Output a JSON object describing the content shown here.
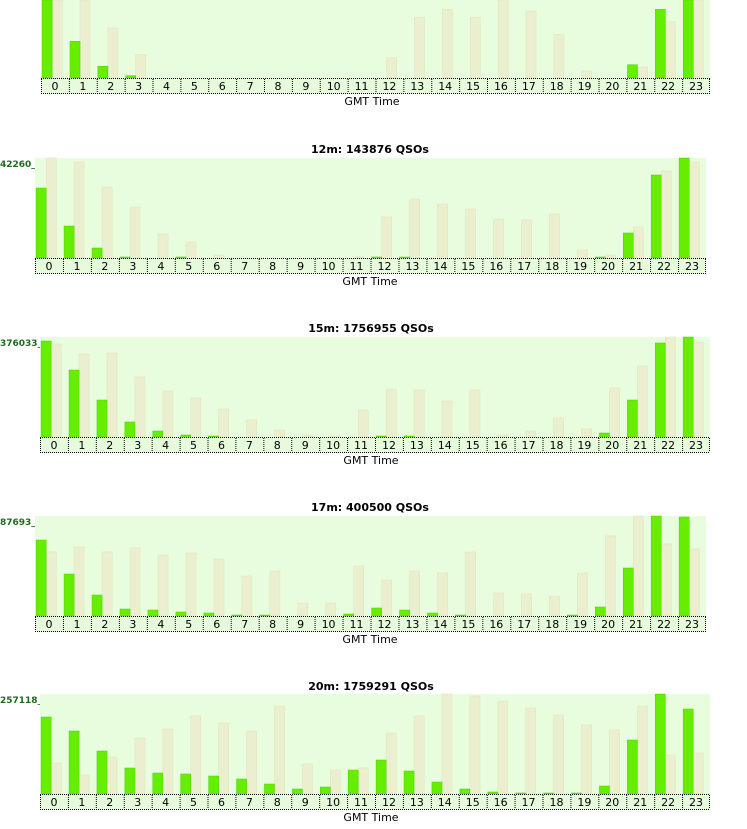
{
  "colors": {
    "plot_background": "#e8fcde",
    "bar_current": "#66ee00",
    "bar_current_edge": "#4fd000",
    "bar_previous": "#ecefcf",
    "bar_previous_edge": "#dfe4b8",
    "axis_band": "#e6fadc",
    "ymax_text": "#1e6b1e"
  },
  "chart_data": [
    {
      "type": "bar",
      "title": "",
      "ymax_label": "",
      "xlabel": "GMT Time",
      "categories": [
        "0",
        "1",
        "2",
        "3",
        "4",
        "5",
        "6",
        "7",
        "8",
        "9",
        "10",
        "11",
        "12",
        "13",
        "14",
        "15",
        "16",
        "17",
        "18",
        "19",
        "20",
        "21",
        "22",
        "23"
      ],
      "ylim": [
        0,
        100
      ],
      "series": [
        {
          "values": [
            100,
            47,
            15,
            3,
            0,
            0,
            0,
            0,
            0,
            0,
            0,
            0,
            0,
            0,
            0,
            0,
            0,
            0,
            0,
            0,
            0,
            17,
            88,
            100
          ]
        },
        {
          "values": [
            100,
            100,
            64,
            30,
            0,
            0,
            0,
            0,
            0,
            0,
            0,
            0,
            26,
            78,
            88,
            78,
            100,
            86,
            56,
            9,
            0,
            14,
            72,
            100
          ]
        }
      ]
    },
    {
      "type": "bar",
      "title": "12m: 143876 QSOs",
      "ymax_label": "42260_",
      "xlabel": "GMT Time",
      "categories": [
        "0",
        "1",
        "2",
        "3",
        "4",
        "5",
        "6",
        "7",
        "8",
        "9",
        "10",
        "11",
        "12",
        "13",
        "14",
        "15",
        "16",
        "17",
        "18",
        "19",
        "20",
        "21",
        "22",
        "23"
      ],
      "ylim": [
        0,
        100
      ],
      "series": [
        {
          "values": [
            70,
            32,
            10,
            1,
            0,
            1,
            0,
            0,
            0,
            0,
            0,
            0,
            1,
            1,
            0,
            0,
            0,
            0,
            0,
            0,
            1,
            25,
            83,
            100
          ]
        },
        {
          "values": [
            100,
            96,
            71,
            51,
            24,
            16,
            3,
            0,
            0,
            0,
            0,
            1,
            41,
            59,
            54,
            49,
            39,
            38,
            44,
            8,
            3,
            31,
            87,
            96
          ]
        }
      ]
    },
    {
      "type": "bar",
      "title": "15m: 1756955 QSOs",
      "ymax_label": "376033_",
      "xlabel": "GMT Time",
      "categories": [
        "0",
        "1",
        "2",
        "3",
        "4",
        "5",
        "6",
        "7",
        "8",
        "9",
        "10",
        "11",
        "12",
        "13",
        "14",
        "15",
        "16",
        "17",
        "18",
        "19",
        "20",
        "21",
        "22",
        "23"
      ],
      "ylim": [
        0,
        100
      ],
      "series": [
        {
          "values": [
            96,
            67,
            37,
            15,
            6,
            2,
            1,
            0,
            0,
            0,
            0,
            0,
            1,
            1,
            0,
            0,
            0,
            0,
            0,
            0,
            4,
            37,
            94,
            100
          ]
        },
        {
          "values": [
            93,
            83,
            84,
            60,
            46,
            39,
            28,
            17,
            7,
            2,
            1,
            27,
            48,
            47,
            36,
            47,
            2,
            6,
            19,
            8,
            49,
            71,
            100,
            95
          ]
        }
      ]
    },
    {
      "type": "bar",
      "title": "17m: 400500 QSOs",
      "ymax_label": "87693_",
      "xlabel": "GMT Time",
      "categories": [
        "0",
        "1",
        "2",
        "3",
        "4",
        "5",
        "6",
        "7",
        "8",
        "9",
        "10",
        "11",
        "12",
        "13",
        "14",
        "15",
        "16",
        "17",
        "18",
        "19",
        "20",
        "21",
        "22",
        "23"
      ],
      "ylim": [
        0,
        100
      ],
      "series": [
        {
          "values": [
            76,
            42,
            21,
            7,
            6,
            4,
            3,
            1,
            1,
            0,
            0,
            2,
            8,
            6,
            3,
            1,
            0,
            0,
            0,
            1,
            9,
            48,
            100,
            99
          ]
        },
        {
          "values": [
            64,
            69,
            64,
            68,
            61,
            63,
            57,
            40,
            45,
            13,
            13,
            50,
            36,
            45,
            43,
            64,
            23,
            22,
            20,
            43,
            80,
            100,
            72,
            67
          ]
        }
      ]
    },
    {
      "type": "bar",
      "title": "20m: 1759291 QSOs",
      "ymax_label": "257118_",
      "xlabel": "GMT Time",
      "categories": [
        "0",
        "1",
        "2",
        "3",
        "4",
        "5",
        "6",
        "7",
        "8",
        "9",
        "10",
        "11",
        "12",
        "13",
        "14",
        "15",
        "16",
        "17",
        "18",
        "19",
        "20",
        "21",
        "22",
        "23"
      ],
      "ylim": [
        0,
        100
      ],
      "series": [
        {
          "values": [
            77,
            63,
            43,
            26,
            21,
            20,
            18,
            15,
            10,
            5,
            7,
            24,
            34,
            23,
            12,
            5,
            2,
            1,
            1,
            1,
            8,
            54,
            100,
            85
          ]
        },
        {
          "values": [
            31,
            19,
            37,
            56,
            65,
            78,
            71,
            63,
            88,
            30,
            24,
            26,
            61,
            78,
            100,
            98,
            93,
            86,
            79,
            69,
            64,
            88,
            39,
            41
          ]
        }
      ]
    }
  ]
}
